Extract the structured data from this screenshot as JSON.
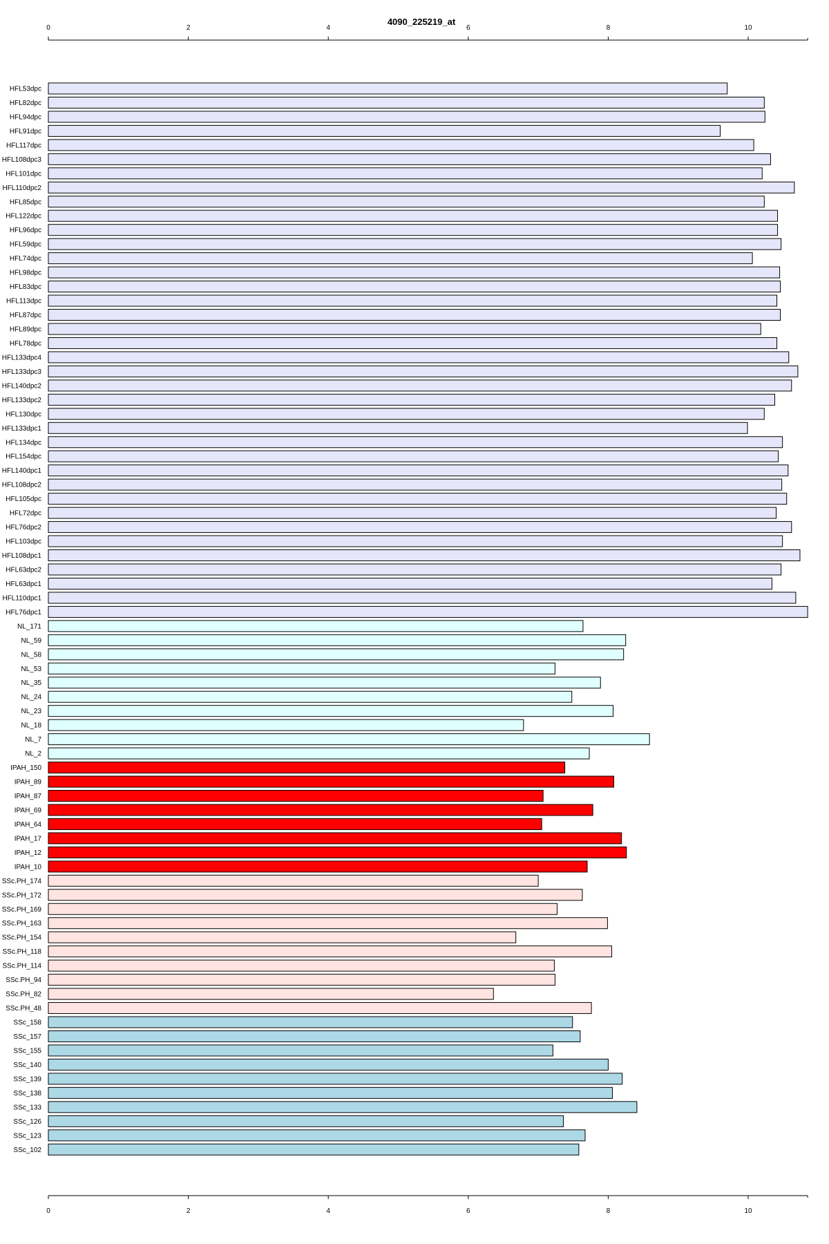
{
  "chart_data": {
    "type": "bar",
    "orientation": "horizontal",
    "title": "4090_225219_at",
    "xlabel": "",
    "ylabel": "",
    "xlim": [
      0,
      10.85
    ],
    "x_ticks": [
      0,
      2,
      4,
      6,
      8,
      10
    ],
    "grid": false,
    "axes": [
      "top",
      "bottom"
    ],
    "categories": [
      "HFL53dpc",
      "HFL82dpc",
      "HFL94dpc",
      "HFL91dpc",
      "HFL117dpc",
      "HFL108dpc3",
      "HFL101dpc",
      "HFL110dpc2",
      "HFL85dpc",
      "HFL122dpc",
      "HFL96dpc",
      "HFL59dpc",
      "HFL74dpc",
      "HFL98dpc",
      "HFL83dpc",
      "HFL113dpc",
      "HFL87dpc",
      "HFL89dpc",
      "HFL78dpc",
      "HFL133dpc4",
      "HFL133dpc3",
      "HFL140dpc2",
      "HFL133dpc2",
      "HFL130dpc",
      "HFL133dpc1",
      "HFL134dpc",
      "HFL154dpc",
      "HFL140dpc1",
      "HFL108dpc2",
      "HFL105dpc",
      "HFL72dpc",
      "HFL76dpc2",
      "HFL103dpc",
      "HFL108dpc1",
      "HFL63dpc2",
      "HFL63dpc1",
      "HFL110dpc1",
      "HFL76dpc1",
      "NL_171",
      "NL_59",
      "NL_58",
      "NL_53",
      "NL_35",
      "NL_24",
      "NL_23",
      "NL_18",
      "NL_7",
      "NL_2",
      "IPAH_150",
      "IPAH_89",
      "IPAH_87",
      "IPAH_69",
      "IPAH_64",
      "IPAH_17",
      "IPAH_12",
      "IPAH_10",
      "SSc.PH_174",
      "SSc.PH_172",
      "SSc.PH_169",
      "SSc.PH_163",
      "SSc.PH_154",
      "SSc.PH_118",
      "SSc.PH_114",
      "SSc.PH_94",
      "SSc.PH_82",
      "SSc.PH_48",
      "SSc_158",
      "SSc_157",
      "SSc_155",
      "SSc_140",
      "SSc_139",
      "SSc_138",
      "SSc_133",
      "SSc_126",
      "SSc_123",
      "SSc_102"
    ],
    "values": [
      9.7,
      10.23,
      10.24,
      9.6,
      10.08,
      10.32,
      10.2,
      10.66,
      10.23,
      10.42,
      10.42,
      10.47,
      10.06,
      10.45,
      10.46,
      10.41,
      10.46,
      10.18,
      10.41,
      10.58,
      10.71,
      10.62,
      10.38,
      10.23,
      9.99,
      10.49,
      10.43,
      10.57,
      10.48,
      10.55,
      10.4,
      10.62,
      10.49,
      10.74,
      10.47,
      10.34,
      10.68,
      10.85,
      7.64,
      8.25,
      8.22,
      7.24,
      7.89,
      7.48,
      8.07,
      6.79,
      8.59,
      7.73,
      7.38,
      8.08,
      7.07,
      7.78,
      7.05,
      8.19,
      8.26,
      7.7,
      7.0,
      7.63,
      7.27,
      7.99,
      6.68,
      8.05,
      7.23,
      7.24,
      6.36,
      7.76,
      7.49,
      7.6,
      7.21,
      8.0,
      8.2,
      8.06,
      8.41,
      7.36,
      7.67,
      7.58
    ],
    "group_colors": {
      "HFL": "#e6e6fa",
      "NL": "#e0ffff",
      "IPAH": "#ff0000",
      "SSc.PH": "#ffe4e1",
      "SSc": "#add8e6"
    }
  }
}
